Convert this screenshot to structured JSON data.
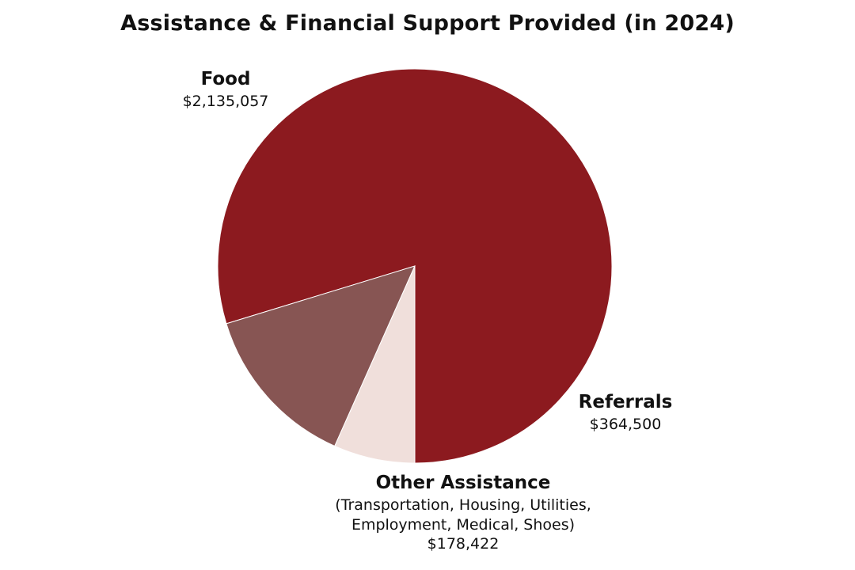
{
  "chart_data": {
    "type": "pie",
    "title": "Assistance & Financial Support Provided (in 2024)",
    "slices": [
      {
        "name": "Food",
        "detail": "",
        "label": "$2,135,057",
        "value": 2135057,
        "color": "#8c1a1f"
      },
      {
        "name": "Referrals",
        "detail": "",
        "label": "$364,500",
        "value": 364500,
        "color": "#875553"
      },
      {
        "name": "Other Assistance",
        "detail": "(Transportation, Housing, Utilities, Employment, Medical, Shoes)",
        "label": "$178,422",
        "value": 178422,
        "color": "#f0dfdb"
      }
    ],
    "start_angle_deg": 180,
    "direction": "counterclockwise",
    "legend": "none"
  }
}
